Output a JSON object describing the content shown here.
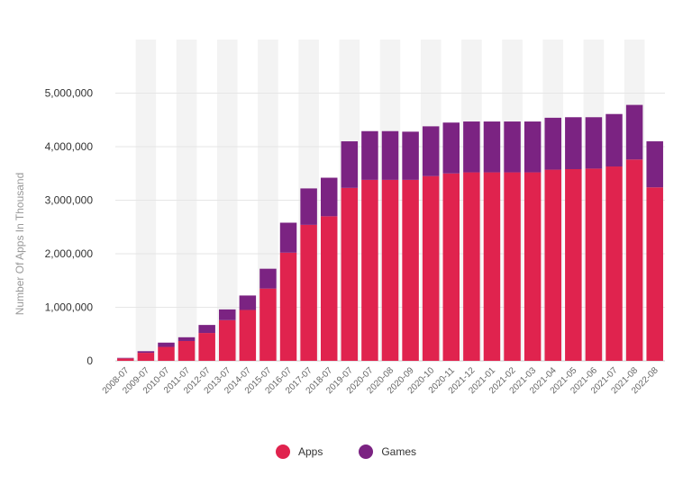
{
  "chart_data": {
    "type": "bar",
    "stacked": true,
    "ylabel": "Number Of Apps In Thousand",
    "ylim": [
      0,
      6000000
    ],
    "yticks": [
      0,
      1000000,
      2000000,
      3000000,
      4000000,
      5000000
    ],
    "ytick_labels": [
      "0",
      "1,000,000",
      "2,000,000",
      "3,000,000",
      "4,000,000",
      "5,000,000"
    ],
    "grid": true,
    "legend_position": "bottom-center",
    "categories": [
      "2008-07",
      "2009-07",
      "2010-07",
      "2011-07",
      "2012-07",
      "2013-07",
      "2014-07",
      "2015-07",
      "2016-07",
      "2017-07",
      "2018-07",
      "2019-07",
      "2020-07",
      "2020-08",
      "2020-09",
      "2020-10",
      "2020-11",
      "2021-12",
      "2021-01",
      "2021-02",
      "2021-03",
      "2021-04",
      "2021-05",
      "2021-06",
      "2021-07",
      "2021-08",
      "2022-08"
    ],
    "series": [
      {
        "name": "Apps",
        "color": "#e0234e",
        "values": [
          45000,
          150000,
          260000,
          370000,
          520000,
          760000,
          950000,
          1350000,
          2020000,
          2540000,
          2700000,
          3230000,
          3380000,
          3380000,
          3380000,
          3450000,
          3500000,
          3520000,
          3520000,
          3520000,
          3520000,
          3570000,
          3580000,
          3590000,
          3630000,
          3760000,
          3240000
        ]
      },
      {
        "name": "Games",
        "color": "#7b2382",
        "values": [
          10000,
          30000,
          80000,
          70000,
          150000,
          200000,
          270000,
          370000,
          560000,
          680000,
          720000,
          870000,
          910000,
          910000,
          900000,
          930000,
          950000,
          950000,
          950000,
          950000,
          950000,
          970000,
          970000,
          960000,
          980000,
          1020000,
          860000
        ]
      }
    ]
  }
}
